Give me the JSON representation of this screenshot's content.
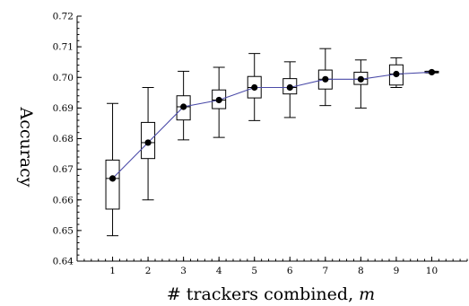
{
  "chart_data": {
    "type": "box",
    "xlabel": "# trackers combined, ",
    "xlabel_var": "m",
    "ylabel": "Accuracy",
    "xlim": [
      0,
      11
    ],
    "ylim": [
      0.64,
      0.72
    ],
    "x_ticks": [
      1,
      2,
      3,
      4,
      5,
      6,
      7,
      8,
      9,
      10
    ],
    "y_ticks": [
      "0.64",
      "0.65",
      "0.66",
      "0.67",
      "0.68",
      "0.69",
      "0.70",
      "0.71",
      "0.72"
    ],
    "grid": false,
    "boxes": [
      {
        "m": 1,
        "min": 0.6483,
        "q1": 0.657,
        "median": 0.667,
        "q3": 0.673,
        "max": 0.6915,
        "mean": 0.667
      },
      {
        "m": 2,
        "min": 0.66,
        "q1": 0.6735,
        "median": 0.6787,
        "q3": 0.6853,
        "max": 0.6967,
        "mean": 0.6787
      },
      {
        "m": 3,
        "min": 0.6796,
        "q1": 0.6861,
        "median": 0.6904,
        "q3": 0.694,
        "max": 0.702,
        "mean": 0.6904
      },
      {
        "m": 4,
        "min": 0.6804,
        "q1": 0.6898,
        "median": 0.6926,
        "q3": 0.6959,
        "max": 0.7033,
        "mean": 0.6926
      },
      {
        "m": 5,
        "min": 0.6859,
        "q1": 0.6933,
        "median": 0.6967,
        "q3": 0.7003,
        "max": 0.7078,
        "mean": 0.6967
      },
      {
        "m": 6,
        "min": 0.6869,
        "q1": 0.6946,
        "median": 0.6967,
        "q3": 0.6996,
        "max": 0.7051,
        "mean": 0.6967
      },
      {
        "m": 7,
        "min": 0.6908,
        "q1": 0.6962,
        "median": 0.6994,
        "q3": 0.7024,
        "max": 0.7094,
        "mean": 0.6994
      },
      {
        "m": 8,
        "min": 0.69,
        "q1": 0.6977,
        "median": 0.6994,
        "q3": 0.7017,
        "max": 0.7057,
        "mean": 0.6994
      },
      {
        "m": 9,
        "min": 0.6967,
        "q1": 0.6975,
        "median": 0.7011,
        "q3": 0.7041,
        "max": 0.7064,
        "mean": 0.7011
      },
      {
        "m": 10,
        "min": 0.7015,
        "q1": 0.7015,
        "median": 0.7017,
        "q3": 0.702,
        "max": 0.702,
        "mean": 0.7017
      }
    ]
  },
  "colors": {
    "mean_line": "#4a4aa8",
    "marker": "#000000"
  }
}
